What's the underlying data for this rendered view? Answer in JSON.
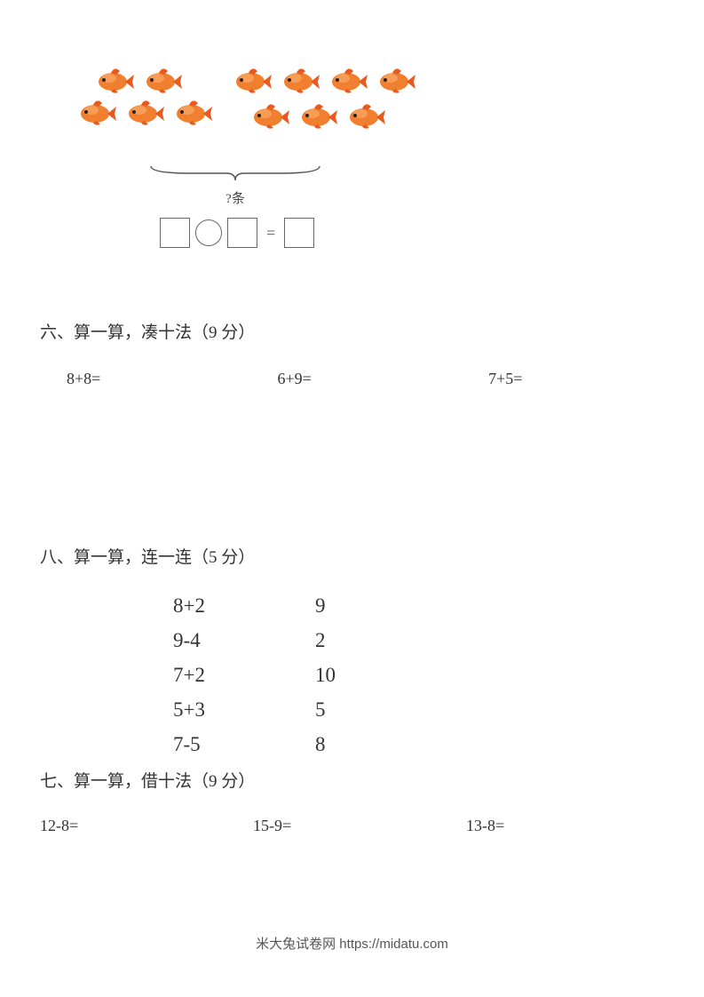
{
  "fish_diagram": {
    "group1_row1_count": 2,
    "group1_row2_count": 3,
    "group2_row1_count": 4,
    "group2_row2_count": 3,
    "fish_body_color": "#f08030",
    "fish_fin_color": "#e85a20",
    "fish_highlight_color": "#ffb070",
    "bracket_label": "?条",
    "equals_sign": "="
  },
  "section6": {
    "title": "六、算一算，凑十法（9 分）",
    "problems": [
      "8+8=",
      "6+9=",
      "7+5="
    ]
  },
  "section8": {
    "title": "八、算一算，连一连（5 分）",
    "rows": [
      {
        "left": "8+2",
        "right": "9"
      },
      {
        "left": "9-4",
        "right": "2"
      },
      {
        "left": "7+2",
        "right": "10"
      },
      {
        "left": "5+3",
        "right": "5"
      },
      {
        "left": "7-5",
        "right": "8"
      }
    ]
  },
  "section7": {
    "title": "七、算一算，借十法（9 分）",
    "problems": [
      "12-8=",
      "15-9=",
      "13-8="
    ]
  },
  "footer": "米大兔试卷网 https://midatu.com"
}
